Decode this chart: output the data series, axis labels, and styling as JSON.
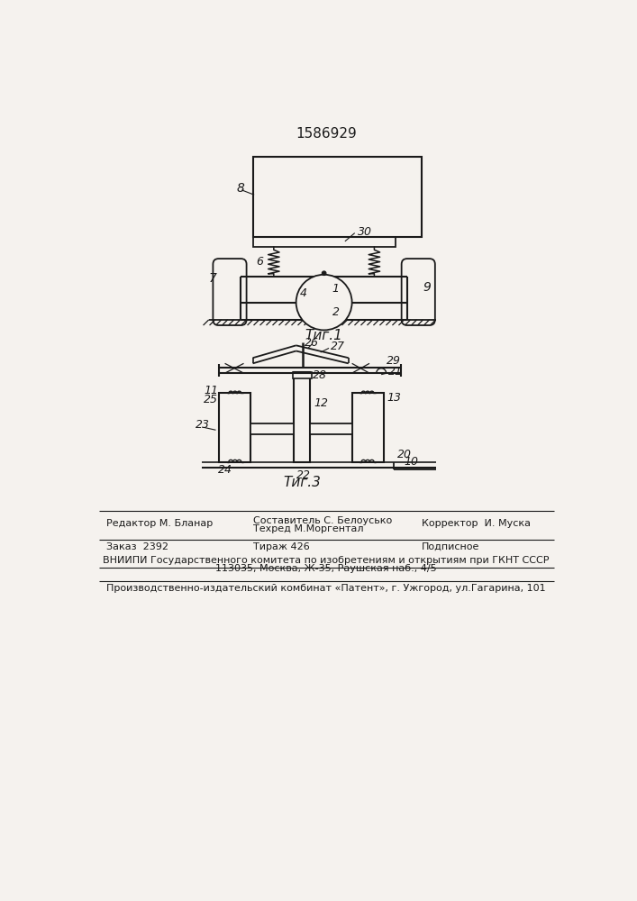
{
  "patent_number": "1586929",
  "fig1_caption": "Τиг.1",
  "fig3_caption": "Τиг.3",
  "background_color": "#f5f2ee",
  "line_color": "#1a1a1a",
  "editor_line": "Редактор М. Бланар",
  "compiler_line": "Составитель С. Белоусько",
  "techred_line": "Техред М.Моргентал",
  "corrector_line": "Корректор  И. Муска",
  "order_line": "Заказ  2392",
  "tirazh_line": "Тираж 426",
  "podpisnoe_line": "Подписное",
  "vniip_line": "ВНИИПИ Государственного комитета по изобретениям и открытиям при ГКНТ СССР",
  "address_line": "113035, Москва, Ж-35, Раушская наб., 4/5",
  "kombinat_line": "Производственно-издательский комбинат «Патент», г. Ужгород, ул.Гагарина, 101"
}
